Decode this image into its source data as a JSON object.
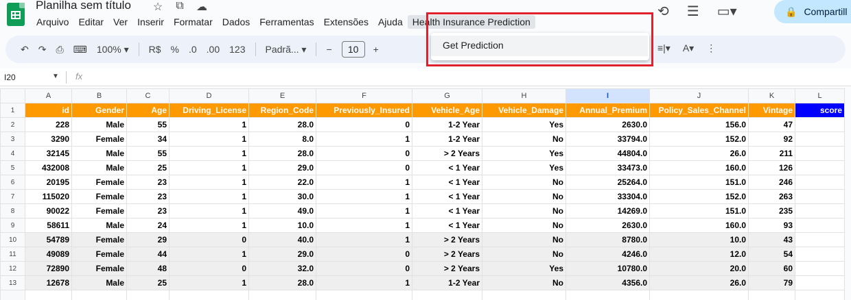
{
  "app": {
    "title": "Planilha sem título",
    "share_label": "Compartill"
  },
  "menu": {
    "items": [
      "Arquivo",
      "Editar",
      "Ver",
      "Inserir",
      "Formatar",
      "Dados",
      "Ferramentas",
      "Extensões",
      "Ajuda",
      "Health Insurance Prediction"
    ],
    "active_index": 9
  },
  "dropdown": {
    "item": "Get Prediction"
  },
  "toolbar": {
    "zoom": "100%",
    "currency": "R$",
    "percent": "%",
    "decimal_down": ".0",
    "decimal_up": ".00",
    "number_format": "123",
    "font": "Padrã...",
    "font_size": "10"
  },
  "formula_bar": {
    "cell_ref": "I20",
    "fx": "fx"
  },
  "columns": [
    "A",
    "B",
    "C",
    "D",
    "E",
    "F",
    "G",
    "H",
    "I",
    "J",
    "K",
    "L"
  ],
  "selected_column": "I",
  "header_row": [
    "id",
    "Gender",
    "Age",
    "Driving_License",
    "Region_Code",
    "Previously_Insured",
    "Vehicle_Age",
    "Vehicle_Damage",
    "Annual_Premium",
    "Policy_Sales_Channel",
    "Vintage",
    "score"
  ],
  "rows": [
    [
      "228",
      "Male",
      "55",
      "1",
      "28.0",
      "0",
      "1-2 Year",
      "Yes",
      "2630.0",
      "156.0",
      "47",
      ""
    ],
    [
      "3290",
      "Female",
      "34",
      "1",
      "8.0",
      "1",
      "1-2 Year",
      "No",
      "33794.0",
      "152.0",
      "92",
      ""
    ],
    [
      "32145",
      "Male",
      "55",
      "1",
      "28.0",
      "0",
      "> 2 Years",
      "Yes",
      "44804.0",
      "26.0",
      "211",
      ""
    ],
    [
      "432008",
      "Male",
      "25",
      "1",
      "29.0",
      "0",
      "< 1 Year",
      "Yes",
      "33473.0",
      "160.0",
      "126",
      ""
    ],
    [
      "20195",
      "Female",
      "23",
      "1",
      "22.0",
      "1",
      "< 1 Year",
      "No",
      "25264.0",
      "151.0",
      "246",
      ""
    ],
    [
      "115020",
      "Female",
      "23",
      "1",
      "30.0",
      "1",
      "< 1 Year",
      "No",
      "33304.0",
      "152.0",
      "263",
      ""
    ],
    [
      "90022",
      "Female",
      "23",
      "1",
      "49.0",
      "1",
      "< 1 Year",
      "No",
      "14269.0",
      "151.0",
      "235",
      ""
    ],
    [
      "58611",
      "Male",
      "24",
      "1",
      "10.0",
      "1",
      "< 1 Year",
      "No",
      "2630.0",
      "160.0",
      "93",
      ""
    ],
    [
      "54789",
      "Female",
      "29",
      "0",
      "40.0",
      "1",
      "> 2 Years",
      "No",
      "8780.0",
      "10.0",
      "43",
      ""
    ],
    [
      "49089",
      "Female",
      "44",
      "1",
      "29.0",
      "0",
      "> 2 Years",
      "No",
      "4246.0",
      "12.0",
      "54",
      ""
    ],
    [
      "72890",
      "Female",
      "48",
      "0",
      "32.0",
      "0",
      "> 2 Years",
      "Yes",
      "10780.0",
      "20.0",
      "60",
      ""
    ],
    [
      "12678",
      "Male",
      "25",
      "1",
      "28.0",
      "1",
      "1-2 Year",
      "No",
      "4356.0",
      "26.0",
      "79",
      ""
    ]
  ],
  "shaded_rows_from": 10,
  "colors": {
    "header_bg": "#ff9900",
    "score_bg": "#0000ff",
    "highlight_border": "#e0202c"
  }
}
